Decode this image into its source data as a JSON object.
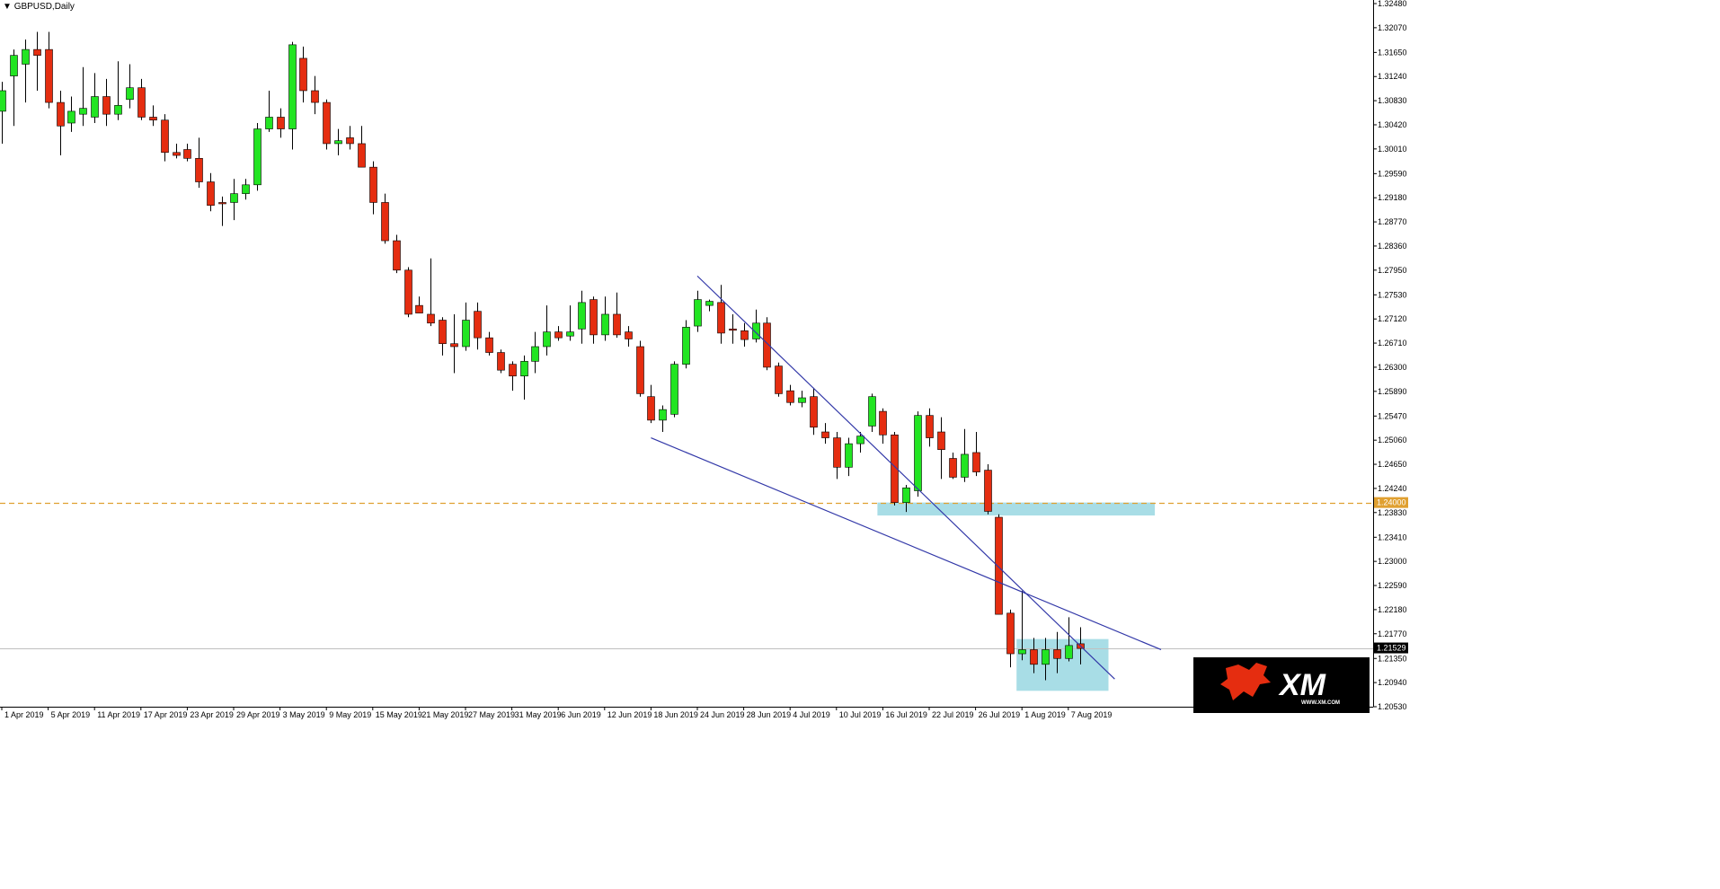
{
  "chart_data": {
    "type": "candlestick",
    "title": "GBPUSD,Daily",
    "symbol": "GBPUSD",
    "timeframe": "Daily",
    "ylim": [
      1.2053,
      1.3248
    ],
    "y_ticks": [
      "1.32480",
      "1.32070",
      "1.31650",
      "1.31240",
      "1.30830",
      "1.30420",
      "1.30010",
      "1.29590",
      "1.29180",
      "1.28770",
      "1.28360",
      "1.27950",
      "1.27530",
      "1.27120",
      "1.26710",
      "1.26300",
      "1.25890",
      "1.25470",
      "1.25060",
      "1.24650",
      "1.24240",
      "1.23830",
      "1.23410",
      "1.23000",
      "1.22590",
      "1.22180",
      "1.21770",
      "1.21350",
      "1.20940",
      "1.20530"
    ],
    "x_labels": [
      {
        "i": 0,
        "label": "1 Apr 2019"
      },
      {
        "i": 4,
        "label": "5 Apr 2019"
      },
      {
        "i": 8,
        "label": "11 Apr 2019"
      },
      {
        "i": 12,
        "label": "17 Apr 2019"
      },
      {
        "i": 16,
        "label": "23 Apr 2019"
      },
      {
        "i": 20,
        "label": "29 Apr 2019"
      },
      {
        "i": 24,
        "label": "3 May 2019"
      },
      {
        "i": 28,
        "label": "9 May 2019"
      },
      {
        "i": 32,
        "label": "15 May 2019"
      },
      {
        "i": 36,
        "label": "21 May 2019"
      },
      {
        "i": 40,
        "label": "27 May 2019"
      },
      {
        "i": 44,
        "label": "31 May 2019"
      },
      {
        "i": 48,
        "label": "6 Jun 2019"
      },
      {
        "i": 52,
        "label": "12 Jun 2019"
      },
      {
        "i": 56,
        "label": "18 Jun 2019"
      },
      {
        "i": 60,
        "label": "24 Jun 2019"
      },
      {
        "i": 64,
        "label": "28 Jun 2019"
      },
      {
        "i": 68,
        "label": "4 Jul 2019"
      },
      {
        "i": 72,
        "label": "10 Jul 2019"
      },
      {
        "i": 76,
        "label": "16 Jul 2019"
      },
      {
        "i": 80,
        "label": "22 Jul 2019"
      },
      {
        "i": 84,
        "label": "26 Jul 2019"
      },
      {
        "i": 88,
        "label": "1 Aug 2019"
      },
      {
        "i": 92,
        "label": "7 Aug 2019"
      }
    ],
    "candles": [
      {
        "o": 1.3065,
        "h": 1.3115,
        "l": 1.301,
        "c": 1.31
      },
      {
        "o": 1.3125,
        "h": 1.317,
        "l": 1.304,
        "c": 1.316
      },
      {
        "o": 1.3145,
        "h": 1.3187,
        "l": 1.308,
        "c": 1.317
      },
      {
        "o": 1.317,
        "h": 1.32,
        "l": 1.31,
        "c": 1.316
      },
      {
        "o": 1.317,
        "h": 1.32,
        "l": 1.307,
        "c": 1.308
      },
      {
        "o": 1.308,
        "h": 1.31,
        "l": 1.299,
        "c": 1.304
      },
      {
        "o": 1.3045,
        "h": 1.309,
        "l": 1.303,
        "c": 1.3065
      },
      {
        "o": 1.306,
        "h": 1.314,
        "l": 1.304,
        "c": 1.307
      },
      {
        "o": 1.3055,
        "h": 1.313,
        "l": 1.3045,
        "c": 1.309
      },
      {
        "o": 1.309,
        "h": 1.312,
        "l": 1.304,
        "c": 1.306
      },
      {
        "o": 1.306,
        "h": 1.315,
        "l": 1.305,
        "c": 1.3075
      },
      {
        "o": 1.3085,
        "h": 1.3145,
        "l": 1.307,
        "c": 1.3105
      },
      {
        "o": 1.3105,
        "h": 1.312,
        "l": 1.305,
        "c": 1.3055
      },
      {
        "o": 1.3055,
        "h": 1.3075,
        "l": 1.304,
        "c": 1.305
      },
      {
        "o": 1.305,
        "h": 1.306,
        "l": 1.298,
        "c": 1.2995
      },
      {
        "o": 1.2995,
        "h": 1.301,
        "l": 1.2985,
        "c": 1.299
      },
      {
        "o": 1.3,
        "h": 1.301,
        "l": 1.298,
        "c": 1.2985
      },
      {
        "o": 1.2985,
        "h": 1.302,
        "l": 1.2935,
        "c": 1.2945
      },
      {
        "o": 1.2945,
        "h": 1.296,
        "l": 1.2895,
        "c": 1.2905
      },
      {
        "o": 1.291,
        "h": 1.292,
        "l": 1.287,
        "c": 1.2908
      },
      {
        "o": 1.291,
        "h": 1.295,
        "l": 1.288,
        "c": 1.2925
      },
      {
        "o": 1.2925,
        "h": 1.295,
        "l": 1.2915,
        "c": 1.294
      },
      {
        "o": 1.294,
        "h": 1.3045,
        "l": 1.293,
        "c": 1.3035
      },
      {
        "o": 1.3035,
        "h": 1.31,
        "l": 1.303,
        "c": 1.3055
      },
      {
        "o": 1.3055,
        "h": 1.307,
        "l": 1.302,
        "c": 1.3035
      },
      {
        "o": 1.3035,
        "h": 1.3183,
        "l": 1.3,
        "c": 1.3178
      },
      {
        "o": 1.3155,
        "h": 1.3175,
        "l": 1.308,
        "c": 1.31
      },
      {
        "o": 1.31,
        "h": 1.3125,
        "l": 1.306,
        "c": 1.308
      },
      {
        "o": 1.308,
        "h": 1.3085,
        "l": 1.3,
        "c": 1.301
      },
      {
        "o": 1.301,
        "h": 1.3035,
        "l": 1.299,
        "c": 1.3015
      },
      {
        "o": 1.302,
        "h": 1.304,
        "l": 1.3,
        "c": 1.301
      },
      {
        "o": 1.301,
        "h": 1.304,
        "l": 1.297,
        "c": 1.297
      },
      {
        "o": 1.297,
        "h": 1.298,
        "l": 1.289,
        "c": 1.291
      },
      {
        "o": 1.291,
        "h": 1.2925,
        "l": 1.284,
        "c": 1.2845
      },
      {
        "o": 1.2845,
        "h": 1.2855,
        "l": 1.279,
        "c": 1.2795
      },
      {
        "o": 1.2795,
        "h": 1.28,
        "l": 1.2715,
        "c": 1.272
      },
      {
        "o": 1.2735,
        "h": 1.275,
        "l": 1.2725,
        "c": 1.2722
      },
      {
        "o": 1.272,
        "h": 1.2815,
        "l": 1.27,
        "c": 1.2705
      },
      {
        "o": 1.271,
        "h": 1.2715,
        "l": 1.265,
        "c": 1.267
      },
      {
        "o": 1.267,
        "h": 1.272,
        "l": 1.262,
        "c": 1.2665
      },
      {
        "o": 1.2665,
        "h": 1.274,
        "l": 1.2658,
        "c": 1.271
      },
      {
        "o": 1.2725,
        "h": 1.274,
        "l": 1.266,
        "c": 1.268
      },
      {
        "o": 1.268,
        "h": 1.269,
        "l": 1.265,
        "c": 1.2655
      },
      {
        "o": 1.2655,
        "h": 1.266,
        "l": 1.262,
        "c": 1.2625
      },
      {
        "o": 1.2635,
        "h": 1.264,
        "l": 1.259,
        "c": 1.2615
      },
      {
        "o": 1.2615,
        "h": 1.265,
        "l": 1.2575,
        "c": 1.264
      },
      {
        "o": 1.264,
        "h": 1.269,
        "l": 1.262,
        "c": 1.2665
      },
      {
        "o": 1.2665,
        "h": 1.2735,
        "l": 1.265,
        "c": 1.269
      },
      {
        "o": 1.269,
        "h": 1.27,
        "l": 1.2675,
        "c": 1.268
      },
      {
        "o": 1.2683,
        "h": 1.2735,
        "l": 1.2675,
        "c": 1.269
      },
      {
        "o": 1.2695,
        "h": 1.276,
        "l": 1.267,
        "c": 1.274
      },
      {
        "o": 1.2745,
        "h": 1.275,
        "l": 1.267,
        "c": 1.2685
      },
      {
        "o": 1.2685,
        "h": 1.275,
        "l": 1.2675,
        "c": 1.272
      },
      {
        "o": 1.272,
        "h": 1.2757,
        "l": 1.268,
        "c": 1.2685
      },
      {
        "o": 1.269,
        "h": 1.27,
        "l": 1.2665,
        "c": 1.2678
      },
      {
        "o": 1.2665,
        "h": 1.2675,
        "l": 1.258,
        "c": 1.2585
      },
      {
        "o": 1.258,
        "h": 1.26,
        "l": 1.2535,
        "c": 1.254
      },
      {
        "o": 1.254,
        "h": 1.2565,
        "l": 1.252,
        "c": 1.2558
      },
      {
        "o": 1.255,
        "h": 1.264,
        "l": 1.2545,
        "c": 1.2635
      },
      {
        "o": 1.2635,
        "h": 1.271,
        "l": 1.2628,
        "c": 1.2698
      },
      {
        "o": 1.27,
        "h": 1.276,
        "l": 1.269,
        "c": 1.2745
      },
      {
        "o": 1.2735,
        "h": 1.2745,
        "l": 1.2725,
        "c": 1.2742
      },
      {
        "o": 1.274,
        "h": 1.277,
        "l": 1.267,
        "c": 1.2688
      },
      {
        "o": 1.2695,
        "h": 1.272,
        "l": 1.267,
        "c": 1.2693
      },
      {
        "o": 1.2692,
        "h": 1.2705,
        "l": 1.2665,
        "c": 1.2677
      },
      {
        "o": 1.2678,
        "h": 1.2728,
        "l": 1.2672,
        "c": 1.2705
      },
      {
        "o": 1.2705,
        "h": 1.2715,
        "l": 1.2625,
        "c": 1.263
      },
      {
        "o": 1.2632,
        "h": 1.2638,
        "l": 1.258,
        "c": 1.2585
      },
      {
        "o": 1.259,
        "h": 1.26,
        "l": 1.2565,
        "c": 1.257
      },
      {
        "o": 1.257,
        "h": 1.259,
        "l": 1.2562,
        "c": 1.2578
      },
      {
        "o": 1.258,
        "h": 1.2595,
        "l": 1.2515,
        "c": 1.2528
      },
      {
        "o": 1.252,
        "h": 1.2535,
        "l": 1.25,
        "c": 1.251
      },
      {
        "o": 1.251,
        "h": 1.252,
        "l": 1.244,
        "c": 1.246
      },
      {
        "o": 1.246,
        "h": 1.251,
        "l": 1.2445,
        "c": 1.25
      },
      {
        "o": 1.25,
        "h": 1.252,
        "l": 1.2485,
        "c": 1.2513
      },
      {
        "o": 1.253,
        "h": 1.2585,
        "l": 1.252,
        "c": 1.258
      },
      {
        "o": 1.2555,
        "h": 1.256,
        "l": 1.25,
        "c": 1.2515
      },
      {
        "o": 1.2515,
        "h": 1.252,
        "l": 1.2395,
        "c": 1.24
      },
      {
        "o": 1.24,
        "h": 1.243,
        "l": 1.2384,
        "c": 1.2425
      },
      {
        "o": 1.242,
        "h": 1.2555,
        "l": 1.241,
        "c": 1.2548
      },
      {
        "o": 1.2548,
        "h": 1.256,
        "l": 1.2495,
        "c": 1.251
      },
      {
        "o": 1.252,
        "h": 1.2545,
        "l": 1.244,
        "c": 1.249
      },
      {
        "o": 1.2475,
        "h": 1.2485,
        "l": 1.244,
        "c": 1.2443
      },
      {
        "o": 1.2443,
        "h": 1.2525,
        "l": 1.2435,
        "c": 1.2482
      },
      {
        "o": 1.2485,
        "h": 1.252,
        "l": 1.2445,
        "c": 1.2452
      },
      {
        "o": 1.2455,
        "h": 1.2465,
        "l": 1.238,
        "c": 1.2385
      },
      {
        "o": 1.2375,
        "h": 1.238,
        "l": 1.221,
        "c": 1.221
      },
      {
        "o": 1.2212,
        "h": 1.2218,
        "l": 1.212,
        "c": 1.2143
      },
      {
        "o": 1.2143,
        "h": 1.225,
        "l": 1.2132,
        "c": 1.215
      },
      {
        "o": 1.215,
        "h": 1.217,
        "l": 1.211,
        "c": 1.2125
      },
      {
        "o": 1.2125,
        "h": 1.217,
        "l": 1.2098,
        "c": 1.215
      },
      {
        "o": 1.215,
        "h": 1.218,
        "l": 1.211,
        "c": 1.2135
      },
      {
        "o": 1.2135,
        "h": 1.2205,
        "l": 1.213,
        "c": 1.2157
      },
      {
        "o": 1.216,
        "h": 1.2188,
        "l": 1.2125,
        "c": 1.2152
      }
    ],
    "horizontal_levels": [
      {
        "price": 1.24,
        "label": "1.24000",
        "style": "dashed",
        "color": "#e0a030"
      },
      {
        "price": 1.21529,
        "label": "1.21529",
        "style": "solid",
        "color": "#c0c0c0"
      }
    ],
    "trendlines": [
      {
        "i1": 60,
        "p1": 1.2785,
        "i2": 96,
        "p2": 1.21
      },
      {
        "i1": 56,
        "p1": 1.251,
        "i2": 100,
        "p2": 1.215
      }
    ],
    "zones": [
      {
        "i1": 76,
        "i2": 99,
        "p_top": 1.24,
        "p_bottom": 1.2378
      },
      {
        "i1": 88,
        "i2": 95,
        "p_top": 1.2168,
        "p_bottom": 1.208
      }
    ],
    "logo_text": "XM",
    "logo_url_text": "WWW.XM.COM",
    "colors": {
      "bull": "#22e522",
      "bear": "#e52d10",
      "wick": "#000000",
      "trendline": "#3238a8",
      "zone": "#a8dde6",
      "level": "#e0a030",
      "logo_accent": "#e52d10"
    }
  }
}
